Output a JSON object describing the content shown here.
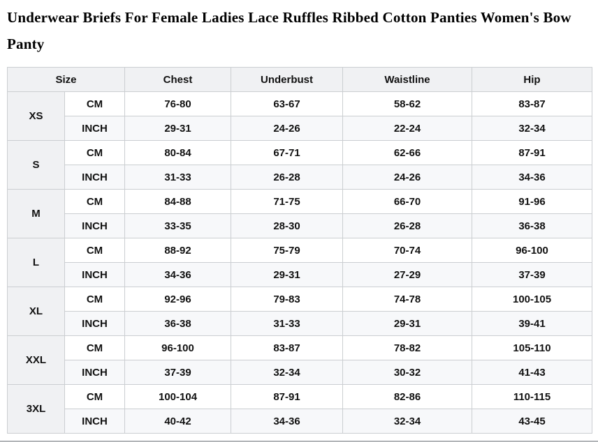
{
  "title": "Underwear Briefs For Female Ladies Lace Ruffles Ribbed Cotton Panties Women's Bow Panty",
  "sizeChart": {
    "header": {
      "size_label": "Size",
      "columns": [
        "Chest",
        "Underbust",
        "Waistline",
        "Hip"
      ]
    },
    "unit_labels": [
      "CM",
      "INCH"
    ],
    "rows": [
      {
        "size": "XS",
        "cm": [
          "76-80",
          "63-67",
          "58-62",
          "83-87"
        ],
        "inch": [
          "29-31",
          "24-26",
          "22-24",
          "32-34"
        ]
      },
      {
        "size": "S",
        "cm": [
          "80-84",
          "67-71",
          "62-66",
          "87-91"
        ],
        "inch": [
          "31-33",
          "26-28",
          "24-26",
          "34-36"
        ]
      },
      {
        "size": "M",
        "cm": [
          "84-88",
          "71-75",
          "66-70",
          "91-96"
        ],
        "inch": [
          "33-35",
          "28-30",
          "26-28",
          "36-38"
        ]
      },
      {
        "size": "L",
        "cm": [
          "88-92",
          "75-79",
          "70-74",
          "96-100"
        ],
        "inch": [
          "34-36",
          "29-31",
          "27-29",
          "37-39"
        ]
      },
      {
        "size": "XL",
        "cm": [
          "92-96",
          "79-83",
          "74-78",
          "100-105"
        ],
        "inch": [
          "36-38",
          "31-33",
          "29-31",
          "39-41"
        ]
      },
      {
        "size": "XXL",
        "cm": [
          "96-100",
          "83-87",
          "78-82",
          "105-110"
        ],
        "inch": [
          "37-39",
          "32-34",
          "30-32",
          "41-43"
        ]
      },
      {
        "size": "3XL",
        "cm": [
          "100-104",
          "87-91",
          "82-86",
          "110-115"
        ],
        "inch": [
          "40-42",
          "34-36",
          "32-34",
          "43-45"
        ]
      }
    ]
  },
  "colors": {
    "header_bg": "#f0f1f3",
    "alt_row_bg": "#f7f8fa",
    "border": "#cbced1",
    "bottom_edge": "#b2b5b8",
    "text": "#111111"
  }
}
